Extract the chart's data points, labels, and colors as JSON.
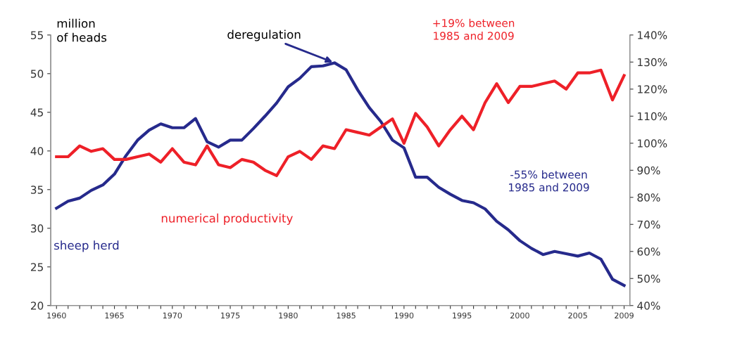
{
  "chart_data": {
    "type": "line",
    "ylabel": "million\nof heads",
    "x": [
      1960,
      1961,
      1962,
      1963,
      1964,
      1965,
      1966,
      1967,
      1968,
      1969,
      1970,
      1971,
      1972,
      1973,
      1974,
      1975,
      1976,
      1977,
      1978,
      1979,
      1980,
      1981,
      1982,
      1983,
      1984,
      1985,
      1986,
      1987,
      1988,
      1989,
      1990,
      1991,
      1992,
      1993,
      1994,
      1995,
      1996,
      1997,
      1998,
      1999,
      2000,
      2001,
      2002,
      2003,
      2004,
      2005,
      2006,
      2007,
      2008,
      2009
    ],
    "series": [
      {
        "name": "sheep herd",
        "color": "#262a8c",
        "values": [
          32.6,
          33.5,
          33.9,
          34.9,
          35.6,
          37.0,
          39.4,
          41.4,
          42.7,
          43.5,
          43.0,
          43.0,
          44.2,
          41.2,
          40.5,
          41.4,
          41.4,
          42.9,
          44.5,
          46.2,
          48.3,
          49.4,
          50.9,
          51.0,
          51.4,
          50.5,
          47.9,
          45.6,
          43.8,
          41.4,
          40.4,
          36.6,
          36.6,
          35.3,
          34.4,
          33.6,
          33.3,
          32.5,
          30.9,
          29.8,
          28.4,
          27.4,
          26.6,
          27.0,
          26.7,
          26.4,
          26.8,
          26.0,
          23.4,
          22.6
        ]
      },
      {
        "name": "numerical productivity",
        "color": "#ee2028",
        "axis": "y2",
        "values": [
          95,
          95,
          99,
          97,
          98,
          94,
          94,
          95,
          96,
          93,
          98,
          93,
          92,
          99,
          92,
          91,
          94,
          93,
          90,
          88,
          95,
          97,
          94,
          99,
          98,
          105,
          104,
          103,
          106,
          109,
          100,
          111,
          106,
          99,
          105,
          110,
          105,
          115,
          122,
          115,
          121,
          121,
          122,
          123,
          120,
          126,
          126,
          127,
          116,
          125
        ]
      }
    ],
    "xlim": [
      1959.5,
      2009.5
    ],
    "xticks": [
      1960,
      {
        "value": 1961,
        "label": null
      },
      {
        "value": 1962,
        "label": null
      },
      {
        "value": 1963,
        "label": null
      },
      {
        "value": 1964,
        "label": null
      },
      1965,
      {
        "value": 1966,
        "label": null
      },
      {
        "value": 1967,
        "label": null
      },
      {
        "value": 1968,
        "label": null
      },
      {
        "value": 1969,
        "label": null
      },
      1970,
      {
        "value": 1971,
        "label": null
      },
      {
        "value": 1972,
        "label": null
      },
      {
        "value": 1973,
        "label": null
      },
      {
        "value": 1974,
        "label": null
      },
      1975,
      {
        "value": 1976,
        "label": null
      },
      {
        "value": 1977,
        "label": null
      },
      {
        "value": 1978,
        "label": null
      },
      {
        "value": 1979,
        "label": null
      },
      1980,
      {
        "value": 1981,
        "label": null
      },
      {
        "value": 1982,
        "label": null
      },
      {
        "value": 1983,
        "label": null
      },
      {
        "value": 1984,
        "label": null
      },
      1985,
      {
        "value": 1986,
        "label": null
      },
      {
        "value": 1987,
        "label": null
      },
      {
        "value": 1988,
        "label": null
      },
      {
        "value": 1989,
        "label": null
      },
      1990,
      {
        "value": 1991,
        "label": null
      },
      {
        "value": 1992,
        "label": null
      },
      {
        "value": 1993,
        "label": null
      },
      {
        "value": 1994,
        "label": null
      },
      1995,
      {
        "value": 1996,
        "label": null
      },
      {
        "value": 1997,
        "label": null
      },
      {
        "value": 1998,
        "label": null
      },
      {
        "value": 1999,
        "label": null
      },
      2000,
      {
        "value": 2001,
        "label": null
      },
      {
        "value": 2002,
        "label": null
      },
      {
        "value": 2003,
        "label": null
      },
      {
        "value": 2004,
        "label": null
      },
      2005,
      {
        "value": 2006,
        "label": null
      },
      {
        "value": 2007,
        "label": null
      },
      {
        "value": 2008,
        "label": null
      },
      2009
    ],
    "ylim": [
      20,
      55
    ],
    "yticks": [
      20,
      25,
      30,
      35,
      40,
      45,
      50,
      55
    ],
    "y2lim": [
      40,
      140
    ],
    "y2ticks": [
      {
        "value": 40,
        "label": "40%"
      },
      {
        "value": 50,
        "label": "50%"
      },
      {
        "value": 60,
        "label": "60%"
      },
      {
        "value": 70,
        "label": "70%"
      },
      {
        "value": 80,
        "label": "80%"
      },
      {
        "value": 90,
        "label": "90%"
      },
      {
        "value": 100,
        "label": "100%"
      },
      {
        "value": 110,
        "label": "110%"
      },
      {
        "value": 120,
        "label": "120%"
      },
      {
        "value": 130,
        "label": "130%"
      },
      {
        "value": 140,
        "label": "140%"
      }
    ],
    "annotations": [
      {
        "text": "deregulation",
        "x": 1984,
        "y": 51.4
      },
      "+19% between\n1985 and 2009",
      "-55% between\n1985 and 2009"
    ],
    "grid": false,
    "legend": false,
    "marker": "none",
    "line_style": "solid"
  }
}
